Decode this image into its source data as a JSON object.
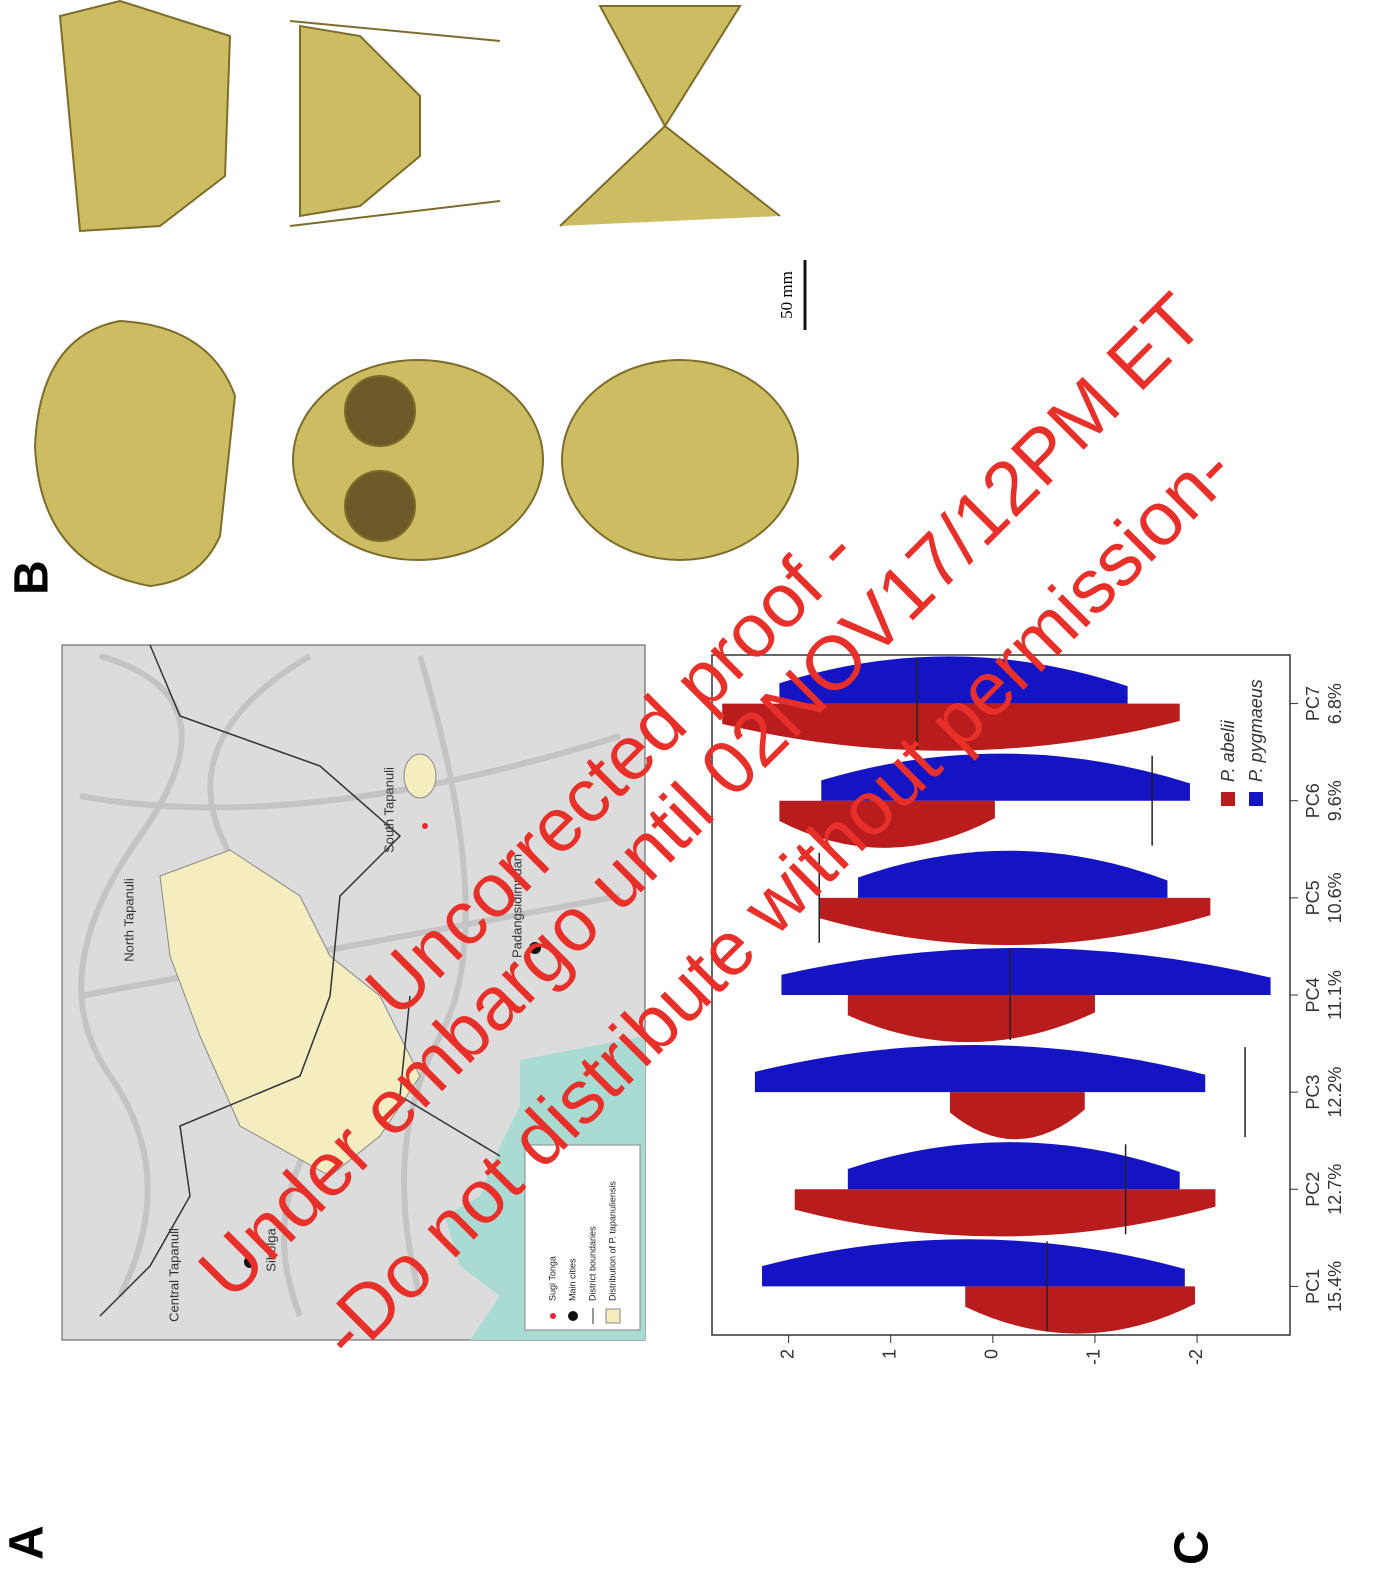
{
  "panels": {
    "a": "A",
    "b": "B",
    "c": "C"
  },
  "map": {
    "labels": {
      "north": "North Tapanuli",
      "south": "South Tapanuli",
      "central": "Central Tapanuli",
      "sibolga": "Sibolga",
      "padang": "Padangsidimpuan"
    },
    "legend": [
      "Sugi Tonga",
      "Main cities",
      "District boundaries",
      "Distribution of P. tapanuliensis"
    ]
  },
  "skulls": {
    "scale_bar": "50 mm"
  },
  "chart_data": {
    "type": "violin",
    "categories": [
      "PC1",
      "PC2",
      "PC3",
      "PC4",
      "PC5",
      "PC6",
      "PC7"
    ],
    "sublabels": [
      "15.4%",
      "12.7%",
      "12.2%",
      "11.1%",
      "10.6%",
      "9.6%",
      "6.8%"
    ],
    "series": [
      {
        "name": "P. abelii",
        "color": "#b81c1c",
        "min": [
          -1.98,
          -2.18,
          -0.9,
          -1.0,
          -2.13,
          -0.02,
          -1.83
        ],
        "max": [
          0.27,
          1.94,
          0.42,
          1.42,
          1.7,
          2.09,
          2.65
        ]
      },
      {
        "name": "P. pygmaeus",
        "color": "#1414c4",
        "min": [
          -1.88,
          -1.83,
          -2.08,
          -2.72,
          -1.71,
          -1.93,
          -1.32
        ],
        "max": [
          2.26,
          1.42,
          2.33,
          2.07,
          1.32,
          1.68,
          2.09
        ]
      }
    ],
    "reference_lines": [
      -0.53,
      -1.3,
      -2.47,
      -0.17,
      1.7,
      -1.56,
      0.74
    ],
    "ylim": [
      -2.91,
      2.75
    ],
    "yticks": [
      2,
      1,
      0,
      -1,
      -2
    ]
  },
  "watermark": [
    "Uncorrected proof -",
    "Under embargo until 02NOV17/12PM ET",
    "-Do not distribute without permission-"
  ]
}
